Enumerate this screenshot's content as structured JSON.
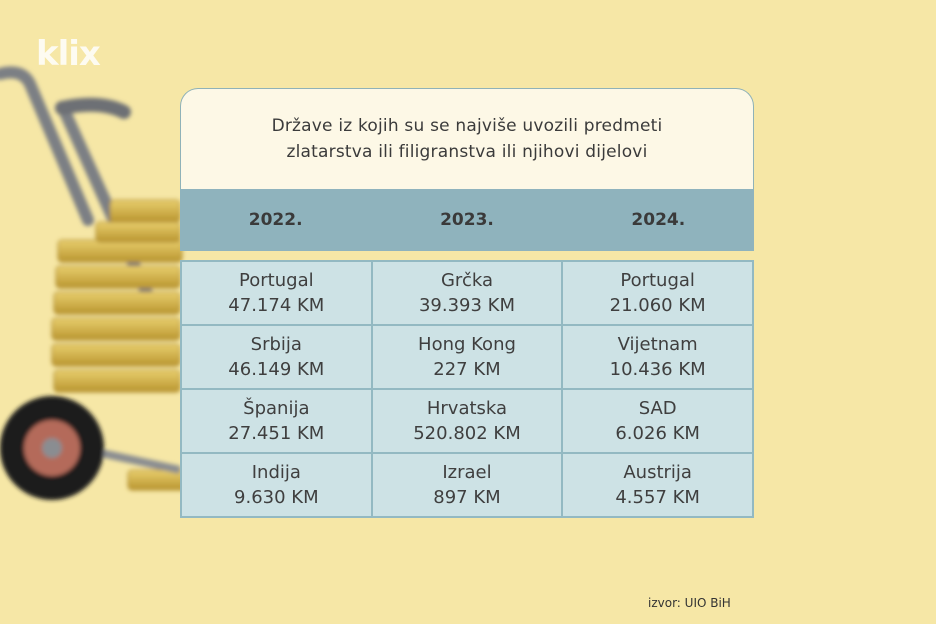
{
  "brand": {
    "logo_text": "klix"
  },
  "title": {
    "line1": "Države iz kojih su se najviše uvozili predmeti",
    "line2": "zlatarstva ili filigranstva ili njihovi dijelovi"
  },
  "years": [
    "2022.",
    "2023.",
    "2024."
  ],
  "rows": [
    [
      {
        "country": "Portugal",
        "value": "47.174 KM"
      },
      {
        "country": "Grčka",
        "value": "39.393 KM"
      },
      {
        "country": "Portugal",
        "value": "21.060 KM"
      }
    ],
    [
      {
        "country": "Srbija",
        "value": "46.149 KM"
      },
      {
        "country": "Hong Kong",
        "value": "227 KM"
      },
      {
        "country": "Vijetnam",
        "value": "10.436 KM"
      }
    ],
    [
      {
        "country": "Španija",
        "value": "27.451 KM"
      },
      {
        "country": "Hrvatska",
        "value": "520.802 KM"
      },
      {
        "country": "SAD",
        "value": "6.026 KM"
      }
    ],
    [
      {
        "country": "Indija",
        "value": "9.630 KM"
      },
      {
        "country": "Izrael",
        "value": "897 KM"
      },
      {
        "country": "Austrija",
        "value": "4.557 KM"
      }
    ]
  ],
  "source": "izvor: UIO BiH",
  "colors": {
    "background": "#f6e7a6",
    "header_band": "#8fb3bd",
    "cell": "#cde2e5",
    "title_box": "#fdf8e6"
  }
}
